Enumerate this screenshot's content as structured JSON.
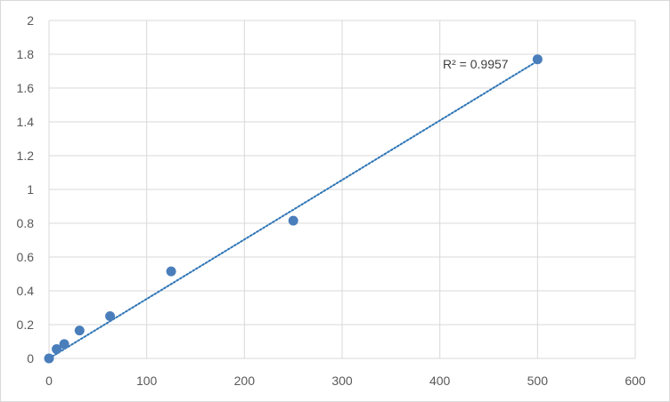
{
  "chart_data": {
    "type": "scatter",
    "title": "",
    "xlabel": "",
    "ylabel": "",
    "xlim": [
      0,
      600
    ],
    "ylim": [
      0,
      2
    ],
    "x_ticks": [
      0,
      100,
      200,
      300,
      400,
      500,
      600
    ],
    "y_ticks": [
      0,
      0.2,
      0.4,
      0.6,
      0.8,
      1,
      1.2,
      1.4,
      1.6,
      1.8,
      2
    ],
    "x_tick_labels": [
      "0",
      "100",
      "200",
      "300",
      "400",
      "500",
      "600"
    ],
    "y_tick_labels": [
      "0",
      "0.2",
      "0.4",
      "0.6",
      "0.8",
      "1",
      "1.2",
      "1.4",
      "1.6",
      "1.8",
      "2"
    ],
    "grid": true,
    "legend": "none",
    "series": [
      {
        "x": [
          0,
          7.8,
          15.6,
          31.25,
          62.5,
          125,
          250,
          500
        ],
        "y": [
          0.0,
          0.055,
          0.085,
          0.165,
          0.25,
          0.515,
          0.815,
          1.77
        ],
        "color": "#4a7ebb",
        "trendline": {
          "type": "linear",
          "x_range": [
            0,
            500
          ],
          "y_range": [
            0.0,
            1.76
          ],
          "color": "#2e75b6",
          "style": "dotted"
        }
      }
    ],
    "annotations": [
      {
        "text": "R² = 0.9957"
      }
    ]
  }
}
